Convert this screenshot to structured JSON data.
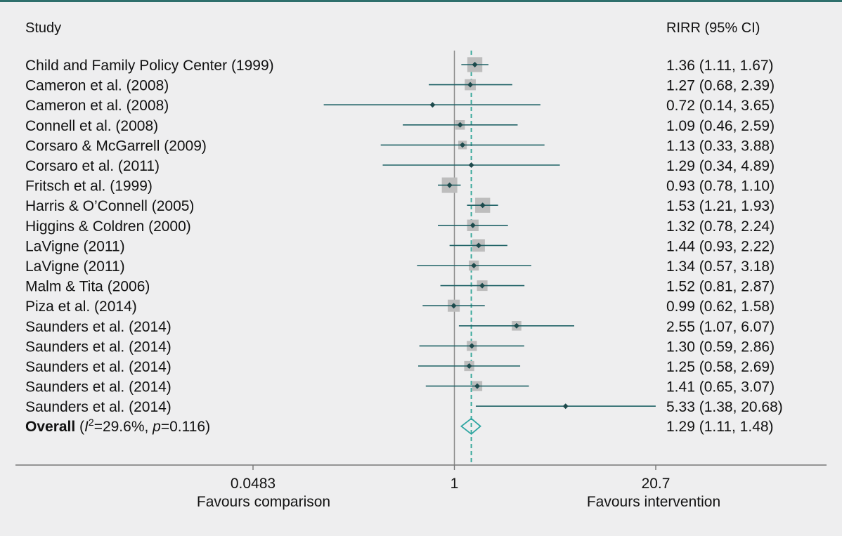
{
  "header": {
    "study_label": "Study",
    "effect_label": "RIRR (95% CI)"
  },
  "chart_data": {
    "type": "forest",
    "scale": "log",
    "null_value": 1,
    "xlim": [
      0.0483,
      20.7
    ],
    "xticks": [
      {
        "value": 0.0483,
        "label": "0.0483"
      },
      {
        "value": 1,
        "label": "1"
      },
      {
        "value": 20.7,
        "label": "20.7"
      }
    ],
    "xlabel_left": "Favours comparison",
    "xlabel_right": "Favours intervention",
    "studies": [
      {
        "name": "Child and Family Policy Center (1999)",
        "est": 1.36,
        "lo": 1.11,
        "hi": 1.67,
        "weight": 0.95,
        "ci_text": "1.36 (1.11, 1.67)"
      },
      {
        "name": "Cameron et al. (2008)",
        "est": 1.27,
        "lo": 0.68,
        "hi": 2.39,
        "weight": 0.55,
        "ci_text": "1.27 (0.68, 2.39)"
      },
      {
        "name": "Cameron et al. (2008)",
        "est": 0.72,
        "lo": 0.14,
        "hi": 3.65,
        "weight": 0.0,
        "ci_text": "0.72 (0.14, 3.65)"
      },
      {
        "name": "Connell et al. (2008)",
        "est": 1.09,
        "lo": 0.46,
        "hi": 2.59,
        "weight": 0.4,
        "ci_text": "1.09 (0.46, 2.59)"
      },
      {
        "name": "Corsaro & McGarrell (2009)",
        "est": 1.13,
        "lo": 0.33,
        "hi": 3.88,
        "weight": 0.3,
        "ci_text": "1.13 (0.33, 3.88)"
      },
      {
        "name": "Corsaro et al. (2011)",
        "est": 1.29,
        "lo": 0.34,
        "hi": 4.89,
        "weight": 0.0,
        "ci_text": "1.29 (0.34, 4.89)"
      },
      {
        "name": "Fritsch et al. (1999)",
        "est": 0.93,
        "lo": 0.78,
        "hi": 1.1,
        "weight": 1.0,
        "ci_text": "0.93 (0.78, 1.10)"
      },
      {
        "name": "Harris & O’Connell (2005)",
        "est": 1.53,
        "lo": 1.21,
        "hi": 1.93,
        "weight": 0.95,
        "ci_text": "1.53 (1.21, 1.93)"
      },
      {
        "name": "Higgins & Coldren (2000)",
        "est": 1.32,
        "lo": 0.78,
        "hi": 2.24,
        "weight": 0.6,
        "ci_text": "1.32 (0.78, 2.24)"
      },
      {
        "name": "LaVigne (2011)",
        "est": 1.44,
        "lo": 0.93,
        "hi": 2.22,
        "weight": 0.7,
        "ci_text": "1.44 (0.93, 2.22)"
      },
      {
        "name": "LaVigne (2011)",
        "est": 1.34,
        "lo": 0.57,
        "hi": 3.18,
        "weight": 0.45,
        "ci_text": "1.34 (0.57, 3.18)"
      },
      {
        "name": "Malm & Tita (2006)",
        "est": 1.52,
        "lo": 0.81,
        "hi": 2.87,
        "weight": 0.5,
        "ci_text": "1.52 (0.81, 2.87)"
      },
      {
        "name": "Piza et al. (2014)",
        "est": 0.99,
        "lo": 0.62,
        "hi": 1.58,
        "weight": 0.65,
        "ci_text": "0.99 (0.62, 1.58)"
      },
      {
        "name": "Saunders et al. (2014)",
        "est": 2.55,
        "lo": 1.07,
        "hi": 6.07,
        "weight": 0.4,
        "ci_text": "2.55 (1.07, 6.07)"
      },
      {
        "name": "Saunders et al. (2014)",
        "est": 1.3,
        "lo": 0.59,
        "hi": 2.86,
        "weight": 0.45,
        "ci_text": "1.30 (0.59, 2.86)"
      },
      {
        "name": "Saunders et al. (2014)",
        "est": 1.25,
        "lo": 0.58,
        "hi": 2.69,
        "weight": 0.45,
        "ci_text": "1.25 (0.58, 2.69)"
      },
      {
        "name": "Saunders et al. (2014)",
        "est": 1.41,
        "lo": 0.65,
        "hi": 3.07,
        "weight": 0.45,
        "ci_text": "1.41 (0.65, 3.07)"
      },
      {
        "name": "Saunders et al. (2014)",
        "est": 5.33,
        "lo": 1.38,
        "hi": 20.68,
        "weight": 0.0,
        "ci_text": "5.33 (1.38, 20.68)"
      }
    ],
    "overall": {
      "label_bold": "Overall",
      "label_open": " (",
      "i2_sym": "I",
      "i2_sup": "2",
      "i2_val": "=29.6%, ",
      "p_sym": "p",
      "p_val": "=0.116)",
      "est": 1.29,
      "lo": 1.11,
      "hi": 1.48,
      "ci_text": "1.29 (1.11, 1.48)"
    },
    "colors": {
      "line": "#1f6266",
      "marker": "#1d4a4c",
      "box": "#bdbdbd",
      "diamond": "#2ea6a2",
      "null_line": "#8a8a8a",
      "pooled_line": "#3aa99c",
      "axis": "#777777"
    }
  }
}
